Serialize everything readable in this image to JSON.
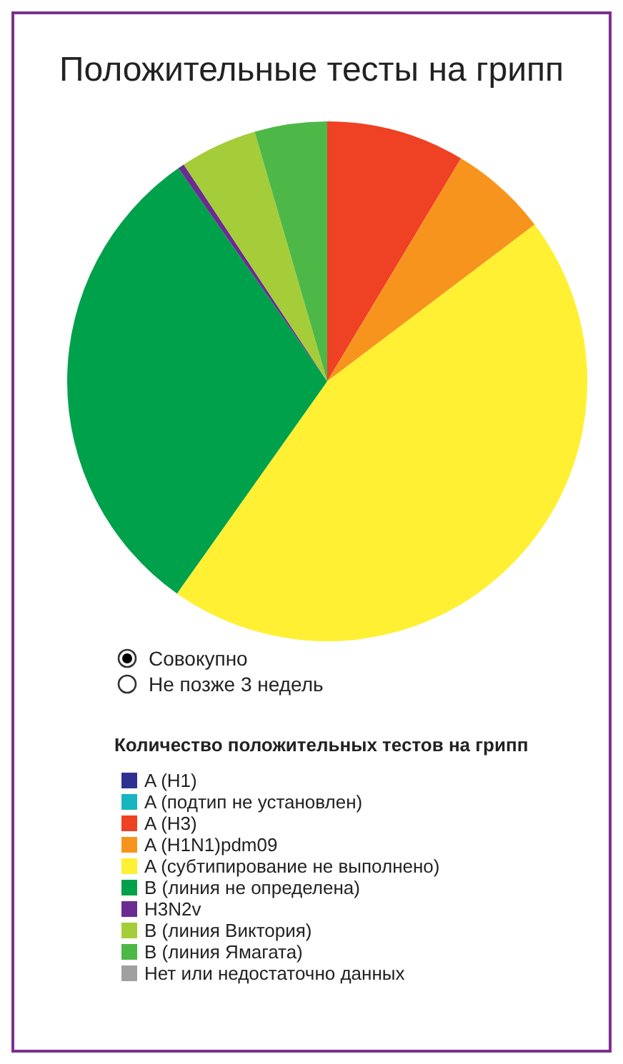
{
  "chart_data": {
    "type": "pie",
    "title": "Положительные тесты на грипп",
    "legend_title": "Количество положительных тестов на грипп",
    "categories": [
      "A (H1)",
      "A (подтип не установлен)",
      "A (H3)",
      "A (H1N1)pdm09",
      "A (субтипирование не выполнено)",
      "B (линия не определена)",
      "H3N2v",
      "B (линия Виктория)",
      "B (линия Ямагата)",
      "Нет или недостаточно данных"
    ],
    "values": [
      0,
      0,
      8.6,
      6.1,
      45.1,
      30.5,
      0.4,
      4.8,
      4.5,
      0
    ],
    "colors": [
      "#2e3192",
      "#16b5bf",
      "#ef4123",
      "#f7941d",
      "#fff033",
      "#00a14b",
      "#6a2c91",
      "#a5cd39",
      "#4db847",
      "#a0a0a0"
    ],
    "annotations": [
      "Совокупно",
      "Не позже 3 недель"
    ],
    "legend": "bottom left"
  }
}
